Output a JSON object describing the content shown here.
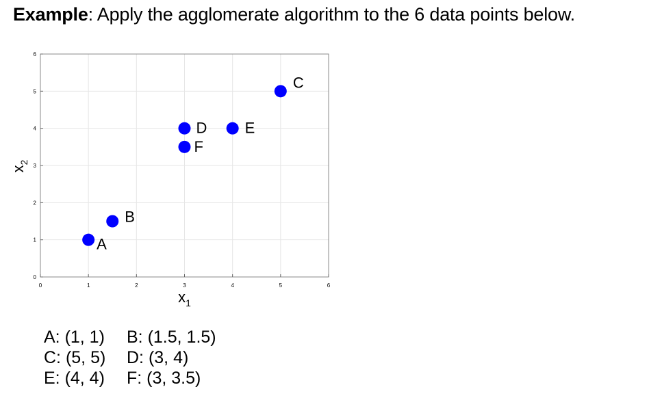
{
  "heading": {
    "bold": "Example",
    "text": ": Apply the agglomerate algorithm to the 6 data points below."
  },
  "chart_data": {
    "type": "scatter",
    "xlabel": "x",
    "xlabel_sub": "1",
    "ylabel": "x",
    "ylabel_sub": "2",
    "xlim": [
      0,
      6
    ],
    "ylim": [
      0,
      6
    ],
    "xticks": [
      "0",
      "1",
      "2",
      "3",
      "4",
      "5",
      "6"
    ],
    "yticks": [
      "0",
      "1",
      "2",
      "3",
      "4",
      "5",
      "6"
    ],
    "grid": true,
    "point_color": "#0000ff",
    "points": [
      {
        "label": "A",
        "x": 1,
        "y": 1
      },
      {
        "label": "B",
        "x": 1.5,
        "y": 1.5
      },
      {
        "label": "C",
        "x": 5,
        "y": 5
      },
      {
        "label": "D",
        "x": 3,
        "y": 4
      },
      {
        "label": "E",
        "x": 4,
        "y": 4
      },
      {
        "label": "F",
        "x": 3,
        "y": 3.5
      }
    ]
  },
  "coordinates": [
    [
      "A: (1, 1)",
      "B: (1.5, 1.5)"
    ],
    [
      "C: (5, 5)",
      "D: (3, 4)"
    ],
    [
      "E: (4, 4)",
      "F: (3, 3.5)"
    ]
  ]
}
